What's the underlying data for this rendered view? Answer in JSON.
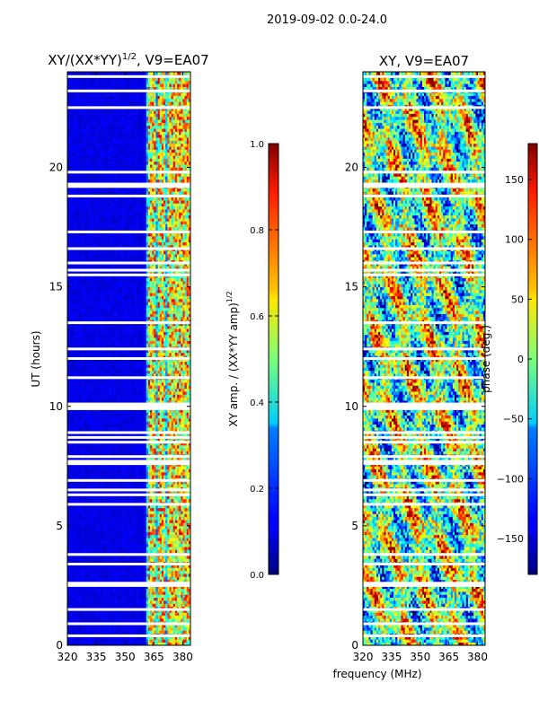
{
  "figure": {
    "suptitle": "2019-09-02 0.0-24.0",
    "xlabel": "frequency (MHz)"
  },
  "chart_data": [
    {
      "type": "heatmap",
      "id": "amp",
      "title_main": "XY/(XX*YY)",
      "title_sup": "1/2",
      "title_rest": ", V9=EA07",
      "ylabel": "UT (hours)",
      "x_ticks": [
        320,
        335,
        350,
        365,
        380
      ],
      "y_ticks": [
        0,
        5,
        10,
        15,
        20
      ],
      "xlim": [
        320,
        384
      ],
      "ylim": [
        0,
        24
      ],
      "colorbar": {
        "label_main": "XY amp. / (XX*YY amp)",
        "label_sup": "1/2",
        "ticks": [
          "0.0",
          "0.2",
          "0.4",
          "0.6",
          "0.8",
          "1.0"
        ],
        "range": [
          0,
          1
        ],
        "colormap": "jet"
      },
      "flagged_hours": [
        0.4,
        0.9,
        1.5,
        2.5,
        2.6,
        3.4,
        3.8,
        5.9,
        6.3,
        6.5,
        6.9,
        7.6,
        7.7,
        7.9,
        8.5,
        8.7,
        8.9,
        9.9,
        10.0,
        10.1,
        11.2,
        12.0,
        12.4,
        13.5,
        15.5,
        15.7,
        16.0,
        16.6,
        17.3,
        18.8,
        19.2,
        19.3,
        19.8,
        22.5,
        23.2,
        23.8
      ],
      "bright_channels_mhz": [
        364,
        369,
        374,
        378,
        382
      ]
    },
    {
      "type": "heatmap",
      "id": "phase",
      "title": "XY, V9=EA07",
      "x_ticks": [
        320,
        335,
        350,
        365,
        380
      ],
      "y_ticks": [
        0,
        5,
        10,
        15,
        20
      ],
      "xlim": [
        320,
        384
      ],
      "ylim": [
        0,
        24
      ],
      "colorbar": {
        "label": "phase (deg.)",
        "ticks": [
          "150",
          "100",
          "50",
          "0",
          "−50",
          "−100",
          "−150"
        ],
        "tick_values": [
          150,
          100,
          50,
          0,
          -50,
          -100,
          -150
        ],
        "range": [
          -180,
          180
        ],
        "colormap": "jet"
      },
      "flagged_hours": [
        0.4,
        0.9,
        1.5,
        2.5,
        2.6,
        3.4,
        3.8,
        5.9,
        6.3,
        6.5,
        6.9,
        7.6,
        7.7,
        7.9,
        8.5,
        8.7,
        8.9,
        9.9,
        10.0,
        10.1,
        11.2,
        12.0,
        12.4,
        13.5,
        15.5,
        15.7,
        16.0,
        16.6,
        17.3,
        18.8,
        19.2,
        19.3,
        19.8,
        22.5,
        23.2,
        23.8
      ]
    }
  ]
}
